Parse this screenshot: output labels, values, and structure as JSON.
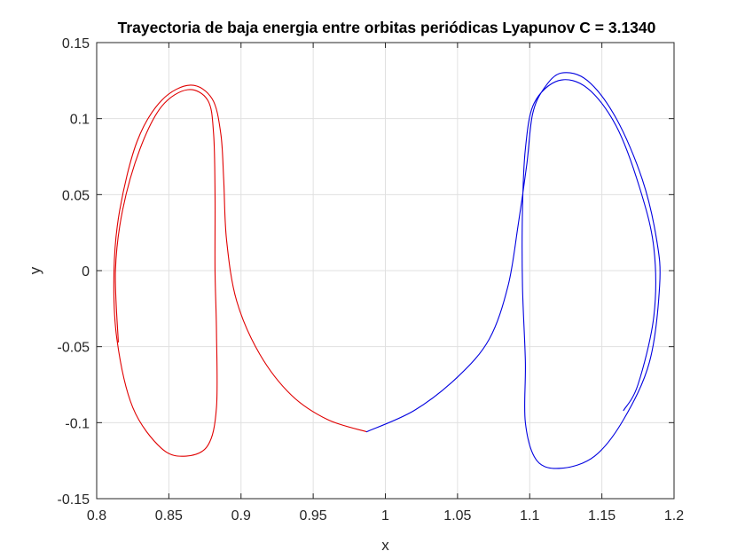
{
  "chart_data": {
    "type": "line",
    "title": "Trayectoria de baja energia entre orbitas periódicas Lyapunov C = 3.1340",
    "xlabel": "x",
    "ylabel": "y",
    "xlim": [
      0.8,
      1.2
    ],
    "ylim": [
      -0.15,
      0.15
    ],
    "xticks": [
      0.8,
      0.85,
      0.9,
      0.95,
      1,
      1.05,
      1.1,
      1.15,
      1.2
    ],
    "xtick_labels": [
      "0.8",
      "0.85",
      "0.9",
      "0.95",
      "1",
      "1.05",
      "1.1",
      "1.15",
      "1.2"
    ],
    "yticks": [
      -0.15,
      -0.1,
      -0.05,
      0,
      0.05,
      0.1,
      0.15
    ],
    "ytick_labels": [
      "-0.15",
      "-0.1",
      "-0.05",
      "0",
      "0.05",
      "0.1",
      "0.15"
    ],
    "grid": true,
    "series": [
      {
        "color": "#e00000",
        "points": [
          [
            0.987,
            -0.106
          ],
          [
            0.96,
            -0.098
          ],
          [
            0.935,
            -0.082
          ],
          [
            0.913,
            -0.055
          ],
          [
            0.897,
            -0.02
          ],
          [
            0.89,
            0.02
          ],
          [
            0.888,
            0.06
          ],
          [
            0.886,
            0.09
          ],
          [
            0.88,
            0.113
          ],
          [
            0.865,
            0.122
          ],
          [
            0.845,
            0.112
          ],
          [
            0.828,
            0.085
          ],
          [
            0.816,
            0.04
          ],
          [
            0.812,
            0.0
          ],
          [
            0.814,
            -0.045
          ],
          [
            0.825,
            -0.09
          ],
          [
            0.845,
            -0.117
          ],
          [
            0.862,
            -0.122
          ],
          [
            0.877,
            -0.115
          ],
          [
            0.883,
            -0.09
          ],
          [
            0.883,
            -0.04
          ],
          [
            0.882,
            0.0
          ],
          [
            0.882,
            0.05
          ],
          [
            0.881,
            0.09
          ],
          [
            0.877,
            0.112
          ],
          [
            0.863,
            0.119
          ],
          [
            0.845,
            0.108
          ],
          [
            0.83,
            0.08
          ],
          [
            0.818,
            0.04
          ],
          [
            0.813,
            0.0
          ],
          [
            0.815,
            -0.047
          ]
        ]
      },
      {
        "color": "#0000e0",
        "points": [
          [
            0.987,
            -0.106
          ],
          [
            1.02,
            -0.092
          ],
          [
            1.05,
            -0.07
          ],
          [
            1.072,
            -0.045
          ],
          [
            1.085,
            -0.01
          ],
          [
            1.092,
            0.03
          ],
          [
            1.098,
            0.07
          ],
          [
            1.102,
            0.103
          ],
          [
            1.11,
            0.12
          ],
          [
            1.122,
            0.13
          ],
          [
            1.14,
            0.125
          ],
          [
            1.16,
            0.1
          ],
          [
            1.178,
            0.06
          ],
          [
            1.188,
            0.02
          ],
          [
            1.19,
            -0.01
          ],
          [
            1.183,
            -0.06
          ],
          [
            1.165,
            -0.098
          ],
          [
            1.145,
            -0.122
          ],
          [
            1.122,
            -0.13
          ],
          [
            1.105,
            -0.125
          ],
          [
            1.097,
            -0.1
          ],
          [
            1.097,
            -0.06
          ],
          [
            1.095,
            -0.01
          ],
          [
            1.095,
            0.04
          ],
          [
            1.097,
            0.08
          ],
          [
            1.103,
            0.11
          ],
          [
            1.12,
            0.125
          ],
          [
            1.14,
            0.12
          ],
          [
            1.16,
            0.095
          ],
          [
            1.176,
            0.055
          ],
          [
            1.186,
            0.015
          ],
          [
            1.186,
            -0.03
          ],
          [
            1.175,
            -0.075
          ],
          [
            1.165,
            -0.092
          ]
        ]
      }
    ]
  }
}
